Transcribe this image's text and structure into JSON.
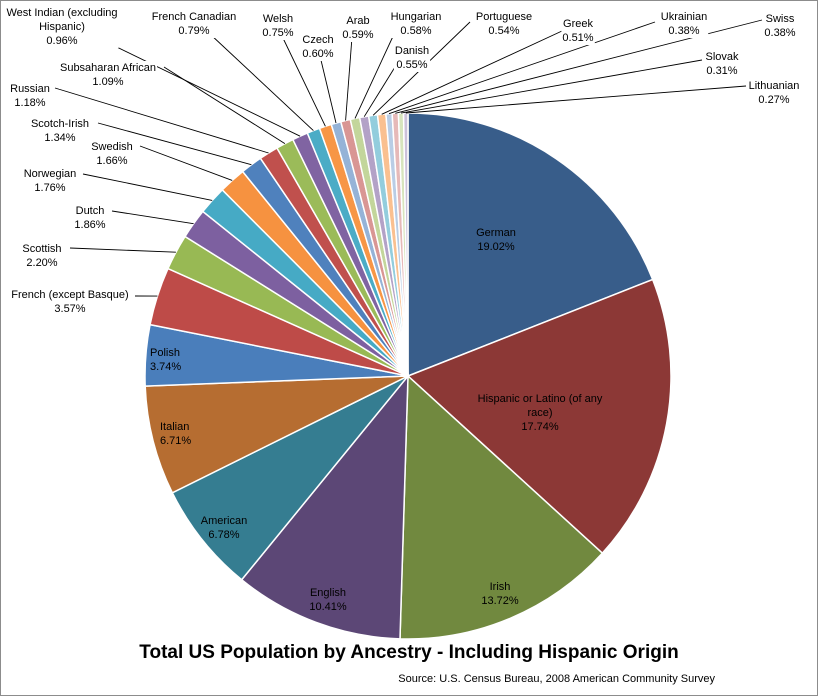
{
  "chart_data": {
    "type": "pie",
    "title": "Total US Population by Ancestry - Including Hispanic Origin",
    "subtitle": "Source: U.S. Census Bureau, 2008 American Community Survey",
    "slices": [
      {
        "label": "German",
        "value": 19.02,
        "display": "19.02%",
        "color": "#385d8a"
      },
      {
        "label": "Hispanic or Latino (of any race)",
        "value": 17.74,
        "display": "17.74%",
        "color": "#8c3836"
      },
      {
        "label": "Irish",
        "value": 13.72,
        "display": "13.72%",
        "color": "#71893f"
      },
      {
        "label": "English",
        "value": 10.41,
        "display": "10.41%",
        "color": "#5c4776"
      },
      {
        "label": "American",
        "value": 6.78,
        "display": "6.78%",
        "color": "#357d91"
      },
      {
        "label": "Italian",
        "value": 6.71,
        "display": "6.71%",
        "color": "#b66d31"
      },
      {
        "label": "Polish",
        "value": 3.74,
        "display": "3.74%",
        "color": "#4a7ebb"
      },
      {
        "label": "French (except Basque)",
        "value": 3.57,
        "display": "3.57%",
        "color": "#be4b48"
      },
      {
        "label": "Scottish",
        "value": 2.2,
        "display": "2.20%",
        "color": "#98b954"
      },
      {
        "label": "Dutch",
        "value": 1.86,
        "display": "1.86%",
        "color": "#7d60a0"
      },
      {
        "label": "Norwegian",
        "value": 1.76,
        "display": "1.76%",
        "color": "#46aac5"
      },
      {
        "label": "Swedish",
        "value": 1.66,
        "display": "1.66%",
        "color": "#f69240"
      },
      {
        "label": "Scotch-Irish",
        "value": 1.34,
        "display": "1.34%",
        "color": "#4f81bd"
      },
      {
        "label": "Russian",
        "value": 1.18,
        "display": "1.18%",
        "color": "#c0504d"
      },
      {
        "label": "Subsaharan African",
        "value": 1.09,
        "display": "1.09%",
        "color": "#9bbb59"
      },
      {
        "label": "West Indian (excluding Hispanic)",
        "value": 0.96,
        "display": "0.96%",
        "color": "#8064a2"
      },
      {
        "label": "French Canadian",
        "value": 0.79,
        "display": "0.79%",
        "color": "#4bacc6"
      },
      {
        "label": "Welsh",
        "value": 0.75,
        "display": "0.75%",
        "color": "#f79646"
      },
      {
        "label": "Czech",
        "value": 0.6,
        "display": "0.60%",
        "color": "#95b3d7"
      },
      {
        "label": "Arab",
        "value": 0.59,
        "display": "0.59%",
        "color": "#d99694"
      },
      {
        "label": "Hungarian",
        "value": 0.58,
        "display": "0.58%",
        "color": "#c3d69b"
      },
      {
        "label": "Danish",
        "value": 0.55,
        "display": "0.55%",
        "color": "#b3a2c7"
      },
      {
        "label": "Portuguese",
        "value": 0.54,
        "display": "0.54%",
        "color": "#93cddd"
      },
      {
        "label": "Greek",
        "value": 0.51,
        "display": "0.51%",
        "color": "#fac090"
      },
      {
        "label": "Ukrainian",
        "value": 0.38,
        "display": "0.38%",
        "color": "#b9cde5"
      },
      {
        "label": "Swiss",
        "value": 0.38,
        "display": "0.38%",
        "color": "#e6b9b8"
      },
      {
        "label": "Slovak",
        "value": 0.31,
        "display": "0.31%",
        "color": "#d7e4bd"
      },
      {
        "label": "Lithuanian",
        "value": 0.27,
        "display": "0.27%",
        "color": "#ccc1da"
      }
    ]
  }
}
